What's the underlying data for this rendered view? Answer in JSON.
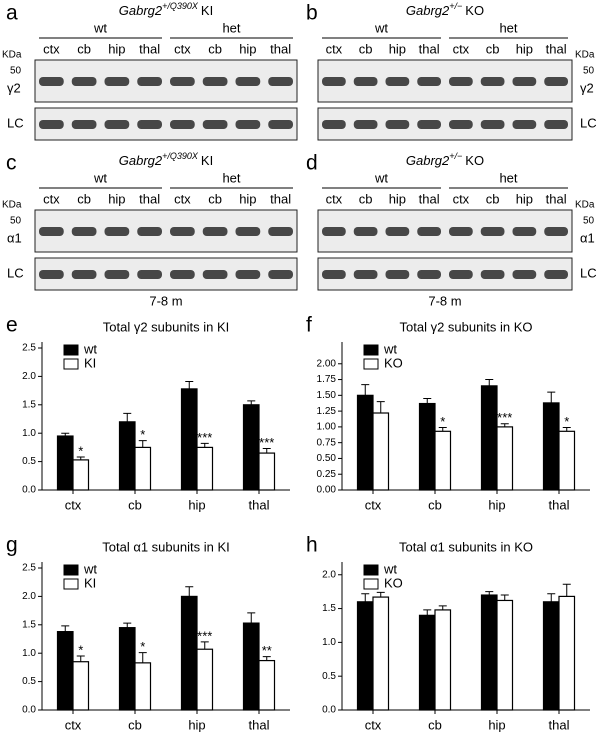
{
  "blots": [
    {
      "letter": "a",
      "title": {
        "gene": "Gabrg2",
        "genotype": "+/Q390X",
        "model": "KI"
      },
      "groups": [
        "wt",
        "het"
      ],
      "lanes": [
        "ctx",
        "cb",
        "hip",
        "thal",
        "ctx",
        "cb",
        "hip",
        "thal"
      ],
      "marker_unit": "KDa",
      "marker": 50,
      "band": "γ2",
      "loading": "LC",
      "side": "left"
    },
    {
      "letter": "b",
      "title": {
        "gene": "Gabrg2",
        "genotype": "+/−",
        "model": "KO"
      },
      "groups": [
        "wt",
        "het"
      ],
      "lanes": [
        "ctx",
        "cb",
        "hip",
        "thal",
        "ctx",
        "cb",
        "hip",
        "thal"
      ],
      "marker_unit": "KDa",
      "marker": 50,
      "band": "γ2",
      "loading": "LC",
      "side": "right"
    },
    {
      "letter": "c",
      "title": {
        "gene": "Gabrg2",
        "genotype": "+/Q390X",
        "model": "KI"
      },
      "groups": [
        "wt",
        "het"
      ],
      "lanes": [
        "ctx",
        "cb",
        "hip",
        "thal",
        "ctx",
        "cb",
        "hip",
        "thal"
      ],
      "marker_unit": "KDa",
      "marker": 50,
      "band": "α1",
      "loading": "LC",
      "side": "left",
      "footer": "7-8 m"
    },
    {
      "letter": "d",
      "title": {
        "gene": "Gabrg2",
        "genotype": "+/−",
        "model": "KO"
      },
      "groups": [
        "wt",
        "het"
      ],
      "lanes": [
        "ctx",
        "cb",
        "hip",
        "thal",
        "ctx",
        "cb",
        "hip",
        "thal"
      ],
      "marker_unit": "KDa",
      "marker": 50,
      "band": "α1",
      "loading": "LC",
      "side": "right",
      "footer": "7-8 m"
    }
  ],
  "chart_data": [
    {
      "letter": "e",
      "type": "bar",
      "title": "Total γ2 subunits in KI",
      "categories": [
        "ctx",
        "cb",
        "hip",
        "thal"
      ],
      "series": [
        {
          "name": "wt",
          "color": "#000000",
          "values": [
            0.95,
            1.2,
            1.78,
            1.5
          ],
          "errors": [
            0.05,
            0.15,
            0.13,
            0.07
          ]
        },
        {
          "name": "KI",
          "color": "#ffffff",
          "values": [
            0.53,
            0.75,
            0.75,
            0.65
          ],
          "errors": [
            0.05,
            0.12,
            0.07,
            0.08
          ],
          "significance": [
            "*",
            "*",
            "***",
            "***"
          ]
        }
      ],
      "ylim": [
        0,
        2.5
      ],
      "yticks": [
        {
          "value": 0,
          "label": "0.0"
        },
        0.5,
        {
          "value": 1,
          "label": "1.0"
        },
        1.5,
        {
          "value": 2,
          "label": "2.0"
        },
        2.5
      ],
      "legend": "top-left"
    },
    {
      "letter": "f",
      "type": "bar",
      "title": "Total γ2 subunits in KO",
      "categories": [
        "ctx",
        "cb",
        "hip",
        "thal"
      ],
      "series": [
        {
          "name": "wt",
          "color": "#000000",
          "values": [
            1.5,
            1.37,
            1.65,
            1.38
          ],
          "errors": [
            0.17,
            0.08,
            0.1,
            0.17
          ]
        },
        {
          "name": "KO",
          "color": "#ffffff",
          "values": [
            1.22,
            0.93,
            1.0,
            0.93
          ],
          "errors": [
            0.18,
            0.06,
            0.05,
            0.06
          ],
          "significance": [
            null,
            "*",
            "***",
            "*"
          ]
        }
      ],
      "ylim": [
        0,
        2.25
      ],
      "yticks": [
        {
          "value": 0,
          "label": "0.00"
        },
        0.25,
        {
          "value": 0.5,
          "label": "0.50"
        },
        0.75,
        {
          "value": 1,
          "label": "1.00"
        },
        1.25,
        {
          "value": 1.5,
          "label": "1.50"
        },
        1.75,
        {
          "value": 2,
          "label": "2.00"
        }
      ],
      "legend": "top-left"
    },
    {
      "letter": "g",
      "type": "bar",
      "title": "Total α1 subunits in KI",
      "categories": [
        "ctx",
        "cb",
        "hip",
        "thal"
      ],
      "series": [
        {
          "name": "wt",
          "color": "#000000",
          "values": [
            1.38,
            1.45,
            2.0,
            1.53
          ],
          "errors": [
            0.1,
            0.08,
            0.17,
            0.18
          ]
        },
        {
          "name": "KI",
          "color": "#ffffff",
          "values": [
            0.85,
            0.83,
            1.07,
            0.87
          ],
          "errors": [
            0.1,
            0.18,
            0.13,
            0.07
          ],
          "significance": [
            "*",
            "*",
            "***",
            "**"
          ]
        }
      ],
      "ylim": [
        0,
        2.5
      ],
      "yticks": [
        {
          "value": 0,
          "label": "0.0"
        },
        0.5,
        {
          "value": 1,
          "label": "1.0"
        },
        1.5,
        {
          "value": 2,
          "label": "2.0"
        },
        2.5
      ],
      "legend": "top-left"
    },
    {
      "letter": "h",
      "type": "bar",
      "title": "Total α1 subunits in KO",
      "categories": [
        "ctx",
        "cb",
        "hip",
        "thal"
      ],
      "series": [
        {
          "name": "wt",
          "color": "#000000",
          "values": [
            1.6,
            1.4,
            1.7,
            1.6
          ],
          "errors": [
            0.12,
            0.08,
            0.05,
            0.12
          ]
        },
        {
          "name": "KO",
          "color": "#ffffff",
          "values": [
            1.67,
            1.48,
            1.62,
            1.68
          ],
          "errors": [
            0.07,
            0.06,
            0.08,
            0.18
          ]
        }
      ],
      "ylim": [
        0,
        2.1
      ],
      "yticks": [
        {
          "value": 0,
          "label": "0.0"
        },
        0.5,
        {
          "value": 1,
          "label": "1.0"
        },
        1.5,
        {
          "value": 2,
          "label": "2.0"
        }
      ],
      "legend": "top-left"
    }
  ]
}
